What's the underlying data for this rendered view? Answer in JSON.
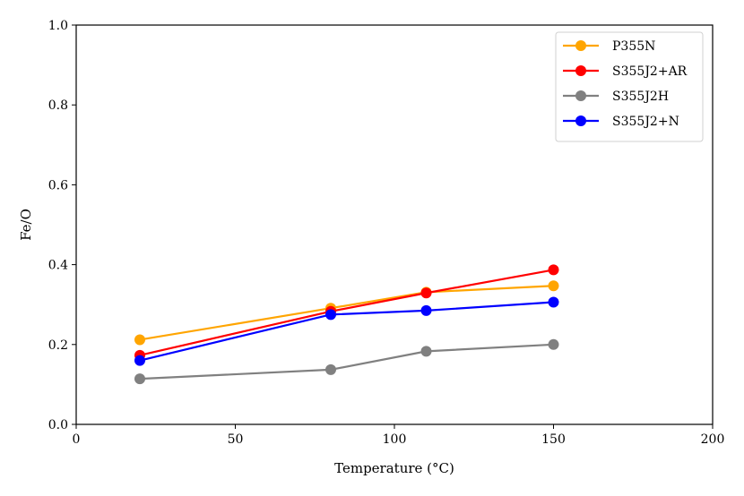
{
  "chart_data": {
    "type": "line",
    "xlabel": "Temperature (°C)",
    "ylabel": "Fe/O",
    "xlim": [
      0,
      200
    ],
    "ylim": [
      0.0,
      1.0
    ],
    "xticks": [
      0,
      50,
      100,
      150,
      200
    ],
    "yticks": [
      0.0,
      0.2,
      0.4,
      0.6,
      0.8,
      1.0
    ],
    "xtick_labels": [
      "0",
      "50",
      "100",
      "150",
      "200"
    ],
    "ytick_labels": [
      "0.0",
      "0.2",
      "0.4",
      "0.6",
      "0.8",
      "1.0"
    ],
    "grid": false,
    "legend_position": "top-right",
    "x": [
      20,
      80,
      110,
      150
    ],
    "series": [
      {
        "name": "P355N",
        "color": "#FFA500",
        "values": [
          0.212,
          0.291,
          0.331,
          0.347
        ]
      },
      {
        "name": "S355J2+AR",
        "color": "#FF0000",
        "values": [
          0.173,
          0.283,
          0.329,
          0.387
        ]
      },
      {
        "name": "S355J2H",
        "color": "#808080",
        "values": [
          0.114,
          0.137,
          0.183,
          0.2
        ]
      },
      {
        "name": "S355J2+N",
        "color": "#0000FF",
        "values": [
          0.16,
          0.275,
          0.285,
          0.306
        ]
      }
    ]
  }
}
